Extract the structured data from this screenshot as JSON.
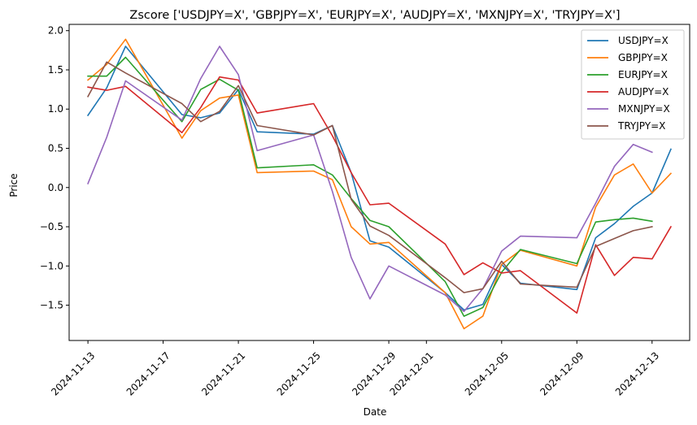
{
  "chart_data": {
    "type": "line",
    "title": "Zscore ['USDJPY=X', 'GBPJPY=X', 'EURJPY=X', 'AUDJPY=X', 'MXNJPY=X', 'TRYJPY=X']",
    "xlabel": "Date",
    "ylabel": "Price",
    "xlim": [
      "2024-11-12",
      "2024-12-15"
    ],
    "ylim": [
      -1.95,
      2.08
    ],
    "xticks": [
      "2024-11-13",
      "2024-11-17",
      "2024-11-21",
      "2024-11-25",
      "2024-11-29",
      "2024-12-01",
      "2024-12-05",
      "2024-12-09",
      "2024-12-13"
    ],
    "yticks": [
      -1.5,
      -1.0,
      -0.5,
      0.0,
      0.5,
      1.0,
      1.5,
      2.0
    ],
    "ytick_labels": [
      "−1.5",
      "−1.0",
      "−0.5",
      "0.0",
      "0.5",
      "1.0",
      "1.5",
      "2.0"
    ],
    "legend_position": "top-right",
    "grid": false,
    "series": [
      {
        "name": "USDJPY=X",
        "color": "#1f77b4",
        "points": [
          [
            "2024-11-13",
            0.92
          ],
          [
            "2024-11-14",
            1.27
          ],
          [
            "2024-11-15",
            1.8
          ],
          [
            "2024-11-18",
            0.93
          ],
          [
            "2024-11-19",
            0.89
          ],
          [
            "2024-11-20",
            0.95
          ],
          [
            "2024-11-21",
            1.25
          ],
          [
            "2024-11-22",
            0.71
          ],
          [
            "2024-11-25",
            0.68
          ],
          [
            "2024-11-26",
            0.79
          ],
          [
            "2024-11-27",
            0.19
          ],
          [
            "2024-11-28",
            -0.68
          ],
          [
            "2024-11-29",
            -0.76
          ],
          [
            "2024-12-02",
            -1.34
          ],
          [
            "2024-12-03",
            -1.56
          ],
          [
            "2024-12-04",
            -1.49
          ],
          [
            "2024-12-05",
            -0.98
          ],
          [
            "2024-12-06",
            -1.22
          ],
          [
            "2024-12-09",
            -1.3
          ],
          [
            "2024-12-10",
            -0.64
          ],
          [
            "2024-12-11",
            -0.46
          ],
          [
            "2024-12-12",
            -0.24
          ],
          [
            "2024-12-13",
            -0.07
          ],
          [
            "2024-12-14",
            0.49
          ]
        ]
      },
      {
        "name": "GBPJPY=X",
        "color": "#ff7f0e",
        "points": [
          [
            "2024-11-13",
            1.37
          ],
          [
            "2024-11-14",
            1.57
          ],
          [
            "2024-11-15",
            1.89
          ],
          [
            "2024-11-18",
            0.63
          ],
          [
            "2024-11-19",
            0.98
          ],
          [
            "2024-11-20",
            1.14
          ],
          [
            "2024-11-21",
            1.18
          ],
          [
            "2024-11-22",
            0.19
          ],
          [
            "2024-11-25",
            0.21
          ],
          [
            "2024-11-26",
            0.1
          ],
          [
            "2024-11-27",
            -0.5
          ],
          [
            "2024-11-28",
            -0.72
          ],
          [
            "2024-11-29",
            -0.7
          ],
          [
            "2024-12-02",
            -1.34
          ],
          [
            "2024-12-03",
            -1.8
          ],
          [
            "2024-12-04",
            -1.64
          ],
          [
            "2024-12-05",
            -0.98
          ],
          [
            "2024-12-06",
            -0.8
          ],
          [
            "2024-12-09",
            -1.0
          ],
          [
            "2024-12-10",
            -0.25
          ],
          [
            "2024-12-11",
            0.16
          ],
          [
            "2024-12-12",
            0.3
          ],
          [
            "2024-12-13",
            -0.07
          ],
          [
            "2024-12-14",
            0.18
          ]
        ]
      },
      {
        "name": "EURJPY=X",
        "color": "#2ca02c",
        "points": [
          [
            "2024-11-13",
            1.42
          ],
          [
            "2024-11-14",
            1.42
          ],
          [
            "2024-11-15",
            1.66
          ],
          [
            "2024-11-18",
            0.84
          ],
          [
            "2024-11-19",
            1.25
          ],
          [
            "2024-11-20",
            1.38
          ],
          [
            "2024-11-21",
            1.24
          ],
          [
            "2024-11-22",
            0.25
          ],
          [
            "2024-11-25",
            0.29
          ],
          [
            "2024-11-26",
            0.16
          ],
          [
            "2024-11-27",
            -0.14
          ],
          [
            "2024-11-28",
            -0.42
          ],
          [
            "2024-11-29",
            -0.5
          ],
          [
            "2024-12-02",
            -1.2
          ],
          [
            "2024-12-03",
            -1.64
          ],
          [
            "2024-12-04",
            -1.53
          ],
          [
            "2024-12-05",
            -1.08
          ],
          [
            "2024-12-06",
            -0.79
          ],
          [
            "2024-12-09",
            -0.97
          ],
          [
            "2024-12-10",
            -0.44
          ],
          [
            "2024-12-11",
            -0.41
          ],
          [
            "2024-12-12",
            -0.39
          ],
          [
            "2024-12-13",
            -0.43
          ]
        ]
      },
      {
        "name": "AUDJPY=X",
        "color": "#d62728",
        "points": [
          [
            "2024-11-13",
            1.28
          ],
          [
            "2024-11-14",
            1.24
          ],
          [
            "2024-11-15",
            1.29
          ],
          [
            "2024-11-18",
            0.7
          ],
          [
            "2024-11-19",
            1.02
          ],
          [
            "2024-11-20",
            1.41
          ],
          [
            "2024-11-21",
            1.37
          ],
          [
            "2024-11-22",
            0.95
          ],
          [
            "2024-11-25",
            1.07
          ],
          [
            "2024-11-26",
            0.66
          ],
          [
            "2024-11-27",
            0.19
          ],
          [
            "2024-11-28",
            -0.22
          ],
          [
            "2024-11-29",
            -0.2
          ],
          [
            "2024-12-02",
            -0.72
          ],
          [
            "2024-12-03",
            -1.11
          ],
          [
            "2024-12-04",
            -0.96
          ],
          [
            "2024-12-05",
            -1.09
          ],
          [
            "2024-12-06",
            -1.06
          ],
          [
            "2024-12-09",
            -1.6
          ],
          [
            "2024-12-10",
            -0.73
          ],
          [
            "2024-12-11",
            -1.12
          ],
          [
            "2024-12-12",
            -0.89
          ],
          [
            "2024-12-13",
            -0.91
          ],
          [
            "2024-12-14",
            -0.5
          ]
        ]
      },
      {
        "name": "MXNJPY=X",
        "color": "#9467bd",
        "points": [
          [
            "2024-11-13",
            0.05
          ],
          [
            "2024-11-14",
            0.64
          ],
          [
            "2024-11-15",
            1.36
          ],
          [
            "2024-11-18",
            0.86
          ],
          [
            "2024-11-19",
            1.39
          ],
          [
            "2024-11-20",
            1.8
          ],
          [
            "2024-11-21",
            1.44
          ],
          [
            "2024-11-22",
            0.47
          ],
          [
            "2024-11-25",
            0.67
          ],
          [
            "2024-11-26",
            -0.05
          ],
          [
            "2024-11-27",
            -0.89
          ],
          [
            "2024-11-28",
            -1.42
          ],
          [
            "2024-11-29",
            -1.0
          ],
          [
            "2024-12-02",
            -1.37
          ],
          [
            "2024-12-03",
            -1.58
          ],
          [
            "2024-12-04",
            -1.29
          ],
          [
            "2024-12-05",
            -0.81
          ],
          [
            "2024-12-06",
            -0.62
          ],
          [
            "2024-12-09",
            -0.64
          ],
          [
            "2024-12-10",
            -0.2
          ],
          [
            "2024-12-11",
            0.27
          ],
          [
            "2024-12-12",
            0.55
          ],
          [
            "2024-12-13",
            0.45
          ]
        ]
      },
      {
        "name": "TRYJPY=X",
        "color": "#8c564b",
        "points": [
          [
            "2024-11-13",
            1.16
          ],
          [
            "2024-11-14",
            1.6
          ],
          [
            "2024-11-15",
            1.46
          ],
          [
            "2024-11-18",
            1.07
          ],
          [
            "2024-11-19",
            0.84
          ],
          [
            "2024-11-20",
            0.97
          ],
          [
            "2024-11-21",
            1.3
          ],
          [
            "2024-11-22",
            0.79
          ],
          [
            "2024-11-25",
            0.67
          ],
          [
            "2024-11-26",
            0.79
          ],
          [
            "2024-11-27",
            -0.15
          ],
          [
            "2024-11-28",
            -0.49
          ],
          [
            "2024-11-29",
            -0.61
          ],
          [
            "2024-12-02",
            -1.15
          ],
          [
            "2024-12-03",
            -1.34
          ],
          [
            "2024-12-04",
            -1.29
          ],
          [
            "2024-12-05",
            -0.94
          ],
          [
            "2024-12-06",
            -1.23
          ],
          [
            "2024-12-09",
            -1.27
          ],
          [
            "2024-12-10",
            -0.75
          ],
          [
            "2024-12-11",
            -0.65
          ],
          [
            "2024-12-12",
            -0.55
          ],
          [
            "2024-12-13",
            -0.5
          ]
        ]
      }
    ]
  }
}
